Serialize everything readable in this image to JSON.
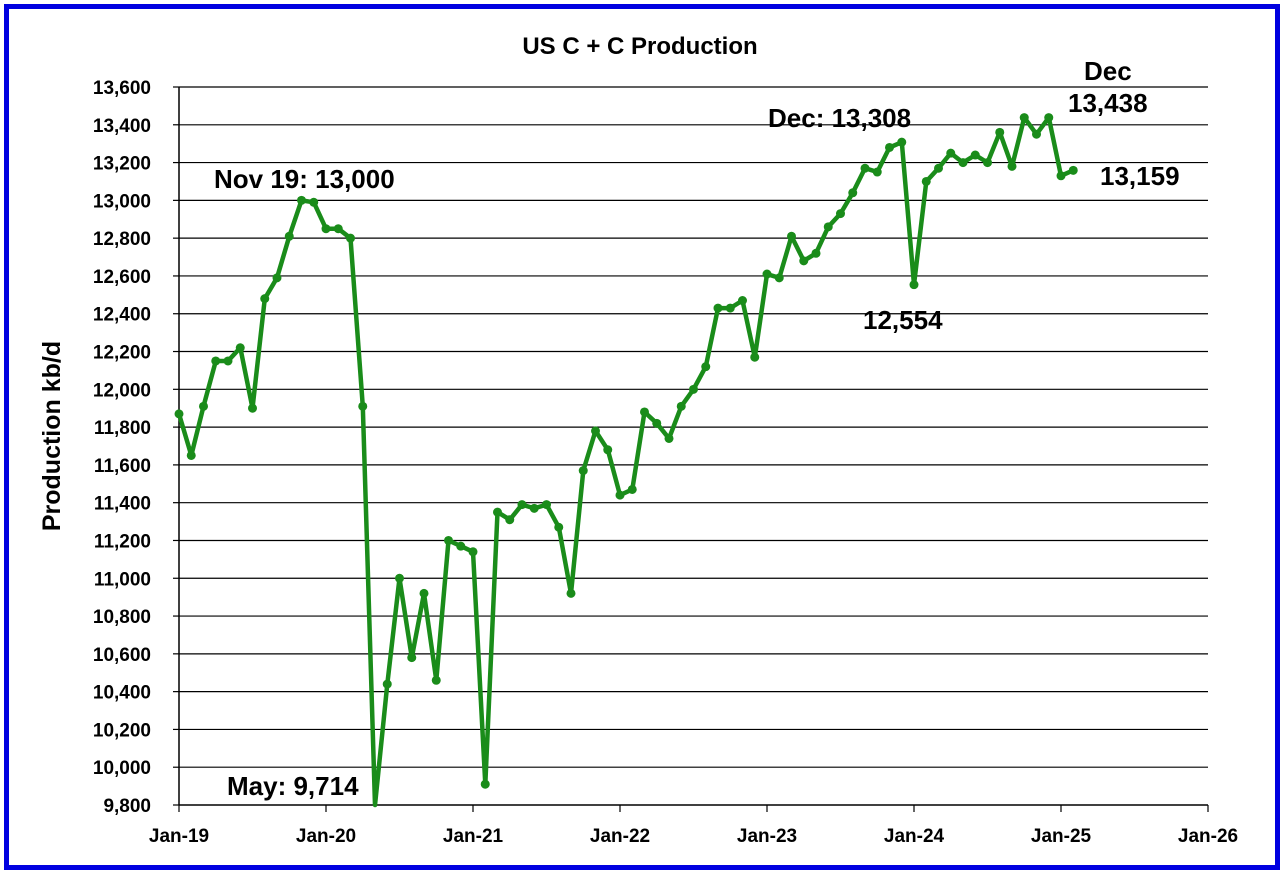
{
  "chart_data": {
    "type": "line",
    "title": "US C + C Production",
    "ylabel": "Production kb/d",
    "xlabel": "",
    "ylim": [
      9800,
      13600
    ],
    "y_ticks": [
      "9,800",
      "10,000",
      "10,200",
      "10,400",
      "10,600",
      "10,800",
      "11,000",
      "11,200",
      "11,400",
      "11,600",
      "11,800",
      "12,000",
      "12,200",
      "12,400",
      "12,600",
      "12,800",
      "13,000",
      "13,200",
      "13,400",
      "13,600"
    ],
    "x_tick_labels": [
      "Jan-19",
      "Jan-20",
      "Jan-21",
      "Jan-22",
      "Jan-23",
      "Jan-24",
      "Jan-25",
      "Jan-26"
    ],
    "grid": "horizontal",
    "legend": "none",
    "line_color": "#1a8c1a",
    "series": [
      {
        "x": [
          "Jan-19",
          "Feb-19",
          "Mar-19",
          "Apr-19",
          "May-19",
          "Jun-19",
          "Jul-19",
          "Aug-19",
          "Sep-19",
          "Oct-19",
          "Nov-19",
          "Dec-19",
          "Jan-20",
          "Feb-20",
          "Mar-20",
          "Apr-20",
          "May-20",
          "Jun-20",
          "Jul-20",
          "Aug-20",
          "Sep-20",
          "Oct-20",
          "Nov-20",
          "Dec-20",
          "Jan-21",
          "Feb-21",
          "Mar-21",
          "Apr-21",
          "May-21",
          "Jun-21",
          "Jul-21",
          "Aug-21",
          "Sep-21",
          "Oct-21",
          "Nov-21",
          "Dec-21",
          "Jan-22",
          "Feb-22",
          "Mar-22",
          "Apr-22",
          "May-22",
          "Jun-22",
          "Jul-22",
          "Aug-22",
          "Sep-22",
          "Oct-22",
          "Nov-22",
          "Dec-22",
          "Jan-23",
          "Feb-23",
          "Mar-23",
          "Apr-23",
          "May-23",
          "Jun-23",
          "Jul-23",
          "Aug-23",
          "Sep-23",
          "Oct-23",
          "Nov-23",
          "Dec-23",
          "Jan-24",
          "Feb-24",
          "Mar-24",
          "Apr-24",
          "May-24",
          "Jun-24",
          "Jul-24",
          "Aug-24",
          "Sep-24",
          "Oct-24",
          "Nov-24",
          "Dec-24",
          "Jan-25",
          "Feb-25"
        ],
        "values": [
          11870,
          11650,
          11910,
          12150,
          12150,
          12220,
          11900,
          12480,
          12590,
          12810,
          13000,
          12990,
          12850,
          12850,
          12800,
          11910,
          9714,
          10440,
          11000,
          10580,
          10920,
          10460,
          11200,
          11170,
          11140,
          9910,
          11350,
          11310,
          11390,
          11370,
          11390,
          11270,
          10920,
          11570,
          11780,
          11680,
          11440,
          11470,
          11880,
          11820,
          11740,
          11910,
          12000,
          12120,
          12430,
          12430,
          12470,
          12170,
          12610,
          12590,
          12810,
          12680,
          12720,
          12860,
          12930,
          13040,
          13170,
          13150,
          13280,
          13308,
          12554,
          13100,
          13170,
          13250,
          13200,
          13240,
          13200,
          13360,
          13180,
          13438,
          13350,
          13438,
          13130,
          13159
        ]
      }
    ],
    "annotations": [
      {
        "text": "Nov 19: 13,000"
      },
      {
        "text": "May: 9,714"
      },
      {
        "text": "Dec: 13,308"
      },
      {
        "text": "12,554"
      },
      {
        "text": "Dec"
      },
      {
        "text": "13,438"
      },
      {
        "text": "13,159"
      }
    ]
  }
}
